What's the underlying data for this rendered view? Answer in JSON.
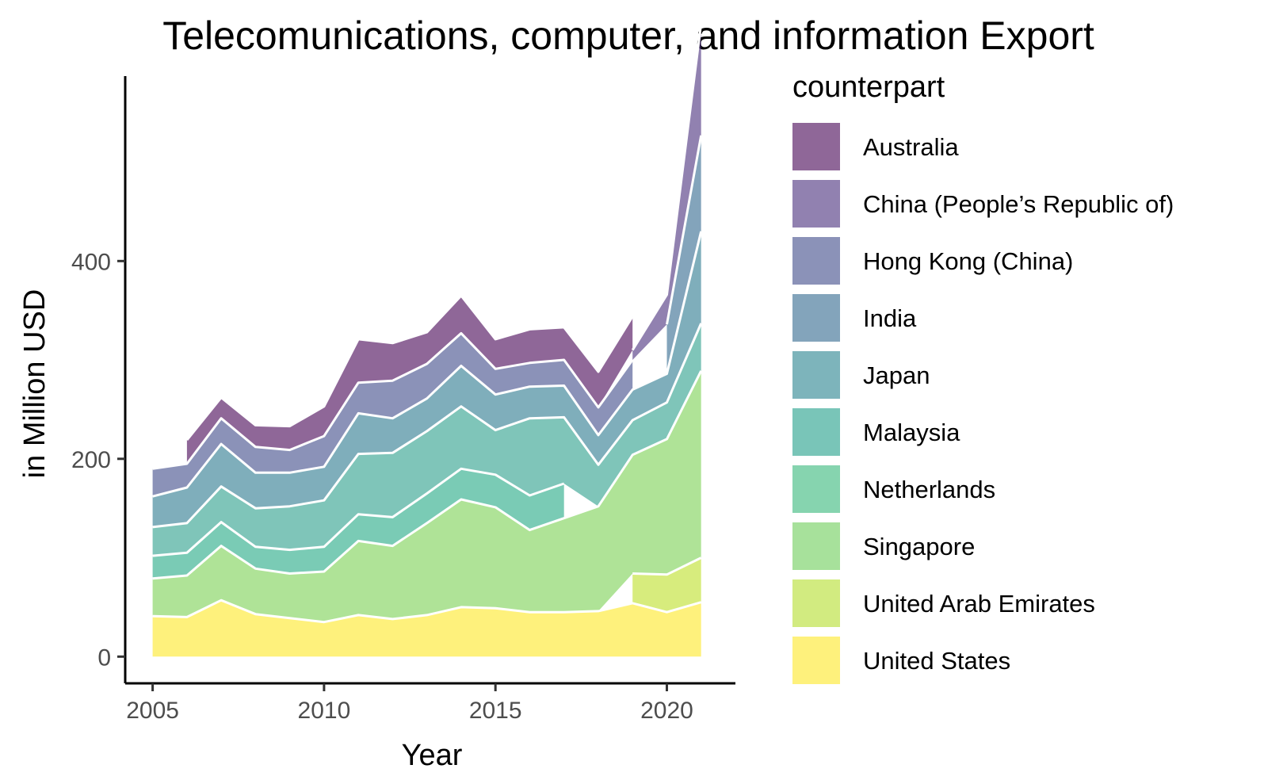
{
  "chart_data": {
    "type": "area",
    "title": "Telecomunications, computer, and information Export",
    "xlabel": "Year",
    "ylabel": "in Million USD",
    "xlim": [
      2004.2,
      2022
    ],
    "ylim": [
      -27,
      587
    ],
    "xticks": [
      2005,
      2010,
      2015,
      2020
    ],
    "yticks": [
      0,
      200,
      400
    ],
    "grid": false,
    "legend_title": "counterpart",
    "legend_position": "right",
    "x": [
      2005,
      2006,
      2007,
      2008,
      2009,
      2010,
      2011,
      2012,
      2013,
      2014,
      2015,
      2016,
      2017,
      2018,
      2019,
      2020,
      2021
    ],
    "series": [
      {
        "name": "United States",
        "color": "#FDE725",
        "values": [
          41,
          40,
          57,
          43,
          39,
          35,
          42,
          38,
          42,
          50,
          49,
          45,
          45,
          46,
          54,
          45,
          55
        ]
      },
      {
        "name": "United Arab Emirates",
        "color": "#BDDF26",
        "values": [
          null,
          null,
          null,
          null,
          null,
          null,
          null,
          null,
          null,
          null,
          null,
          null,
          null,
          null,
          30,
          38,
          45
        ]
      },
      {
        "name": "Singapore",
        "color": "#7AD151",
        "values": [
          38,
          42,
          55,
          46,
          45,
          51,
          75,
          74,
          93,
          109,
          102,
          83,
          95,
          106,
          120,
          137,
          189
        ]
      },
      {
        "name": "Netherlands",
        "color": "#22A884",
        "values": [
          23,
          23,
          24,
          22,
          24,
          25,
          27,
          29,
          30,
          31,
          33,
          35,
          35,
          null,
          null,
          null,
          null
        ]
      },
      {
        "name": "Malaysia",
        "color": "#2A9E8A",
        "values": [
          29,
          30,
          36,
          39,
          44,
          47,
          61,
          65,
          63,
          63,
          45,
          78,
          67,
          42,
          35,
          37,
          48
        ]
      },
      {
        "name": "Japan",
        "color": "#2A788E",
        "values": [
          31,
          36,
          43,
          36,
          34,
          34,
          41,
          35,
          33,
          41,
          36,
          32,
          32,
          30,
          31,
          29,
          93
        ]
      },
      {
        "name": "India",
        "color": "#31688E",
        "values": [
          null,
          null,
          null,
          null,
          null,
          null,
          null,
          null,
          null,
          null,
          null,
          null,
          null,
          null,
          null,
          50,
          97
        ]
      },
      {
        "name": "Hong Kong (China)",
        "color": "#3E4A89",
        "values": [
          28,
          24,
          26,
          26,
          23,
          31,
          31,
          38,
          35,
          33,
          26,
          24,
          26,
          28,
          30,
          null,
          null
        ]
      },
      {
        "name": "China (People's Republic of)",
        "color": "#472D7B",
        "values": [
          null,
          null,
          null,
          null,
          null,
          null,
          null,
          null,
          null,
          null,
          null,
          null,
          null,
          null,
          10,
          30,
          113
        ]
      },
      {
        "name": "Australia",
        "color": "#440154",
        "values": [
          null,
          24,
          21,
          22,
          24,
          30,
          44,
          38,
          32,
          38,
          30,
          34,
          33,
          36,
          34,
          null,
          null
        ]
      }
    ],
    "legend_entries": [
      {
        "label": "Australia",
        "color": "#440154"
      },
      {
        "label": "China (People’s Republic of)",
        "color": "#472D7B"
      },
      {
        "label": "Hong Kong (China)",
        "color": "#3E4A89"
      },
      {
        "label": "India",
        "color": "#31688E"
      },
      {
        "label": "Japan",
        "color": "#26828E"
      },
      {
        "label": "Malaysia",
        "color": "#1F9E89"
      },
      {
        "label": "Netherlands",
        "color": "#35B779"
      },
      {
        "label": "Singapore",
        "color": "#6DCD59"
      },
      {
        "label": "United Arab Emirates",
        "color": "#B4DE2C"
      },
      {
        "label": "United States",
        "color": "#FDE725"
      }
    ]
  }
}
